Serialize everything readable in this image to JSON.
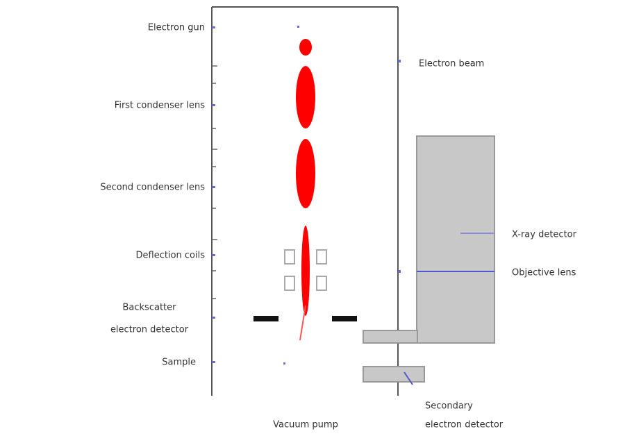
{
  "labels": {
    "electron_gun": "Electron gun",
    "first_condenser": "First condenser lens",
    "second_condenser": "Second condenser lens",
    "deflection_coils": "Deflection coils",
    "backscatter": [
      "Backscatter",
      "electron detector"
    ],
    "sample": "Sample",
    "vacuum_pump": "Vacuum pump",
    "electron_beam": "Electron beam",
    "xray_detector": "X-ray detector",
    "objective_lens": "Objective lens",
    "secondary": [
      "Secondary",
      "electron detector"
    ]
  }
}
